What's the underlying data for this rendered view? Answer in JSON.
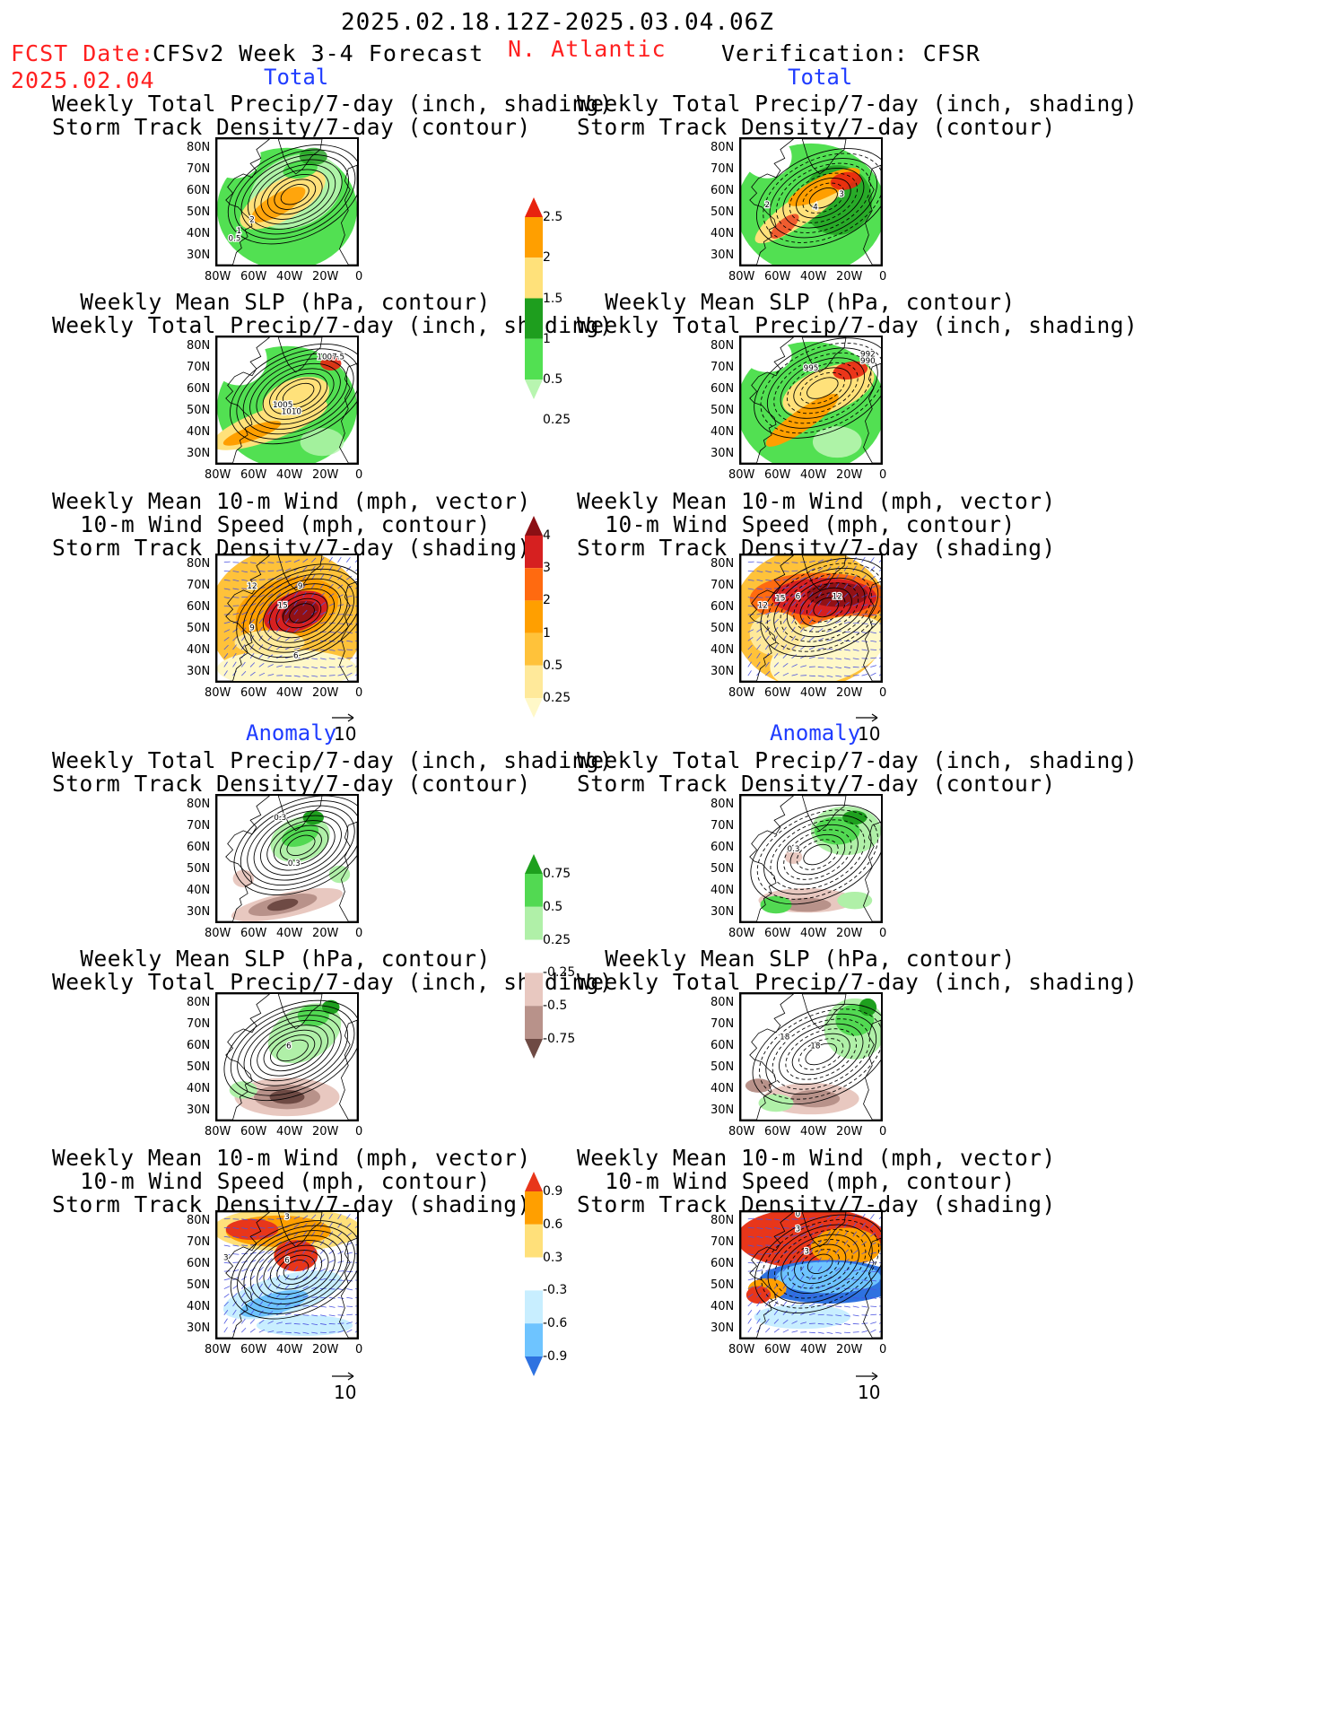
{
  "header": {
    "period": "2025.02.18.12Z-2025.03.04.06Z",
    "fcst_label": "FCST Date:",
    "fcst_date": "2025.02.04",
    "model": "CFSv2 Week 3-4 Forecast",
    "region": "N. Atlantic",
    "verification": "Verification: CFSR"
  },
  "sections": {
    "total": "Total",
    "anomaly": "Anomaly"
  },
  "titles": {
    "precip_track": [
      "Weekly Total Precip/7-day (inch, shading)",
      "Storm Track Density/7-day (contour)"
    ],
    "slp_precip": [
      "Weekly Mean SLP (hPa, contour)",
      "Weekly Total Precip/7-day (inch, shading)"
    ],
    "wind": [
      "Weekly Mean 10-m Wind (mph, vector)",
      "10-m Wind Speed (mph, contour)",
      "Storm Track Density/7-day (shading)"
    ]
  },
  "axes": {
    "lat": [
      "80N",
      "70N",
      "60N",
      "50N",
      "40N",
      "30N"
    ],
    "lon": [
      "80W",
      "60W",
      "40W",
      "20W",
      "0"
    ]
  },
  "ref_vector": "10",
  "colorbars": {
    "precip_total": {
      "labels": [
        "2.5",
        "2",
        "1.5",
        "1",
        "0.5",
        "0.25"
      ],
      "colors": [
        "#e8230f",
        "#ff9f00",
        "#ffe17a",
        "#1e9e1e",
        "#52e052",
        "#b8f5b0"
      ]
    },
    "track_total": {
      "labels": [
        "4",
        "3",
        "2",
        "1",
        "0.5",
        "0.25"
      ],
      "colors": [
        "#8b0f14",
        "#d62020",
        "#ff6a10",
        "#ff9f00",
        "#ffc23a",
        "#ffe99a",
        "#fff8c8"
      ]
    },
    "precip_anom": {
      "labels": [
        "0.75",
        "0.5",
        "0.25",
        "-0.25",
        "-0.5",
        "-0.75"
      ],
      "colors": [
        "#1ea01e",
        "#52d952",
        "#b0f0a8",
        "#ffffff",
        "#e8c8c0",
        "#b8928a",
        "#6e4a44"
      ]
    },
    "track_anom": {
      "labels": [
        "0.9",
        "0.6",
        "0.3",
        "-0.3",
        "-0.6",
        "-0.9"
      ],
      "colors": [
        "#e8361a",
        "#ff9f00",
        "#ffe07a",
        "#ffffff",
        "#c8eeff",
        "#6ec4ff",
        "#2e72e0"
      ]
    }
  },
  "contour_labels": {
    "p1": [
      "2",
      "1",
      "0.5"
    ],
    "p2": [
      "1007.5",
      "1005",
      "1010"
    ],
    "p3": [
      "12",
      "9",
      "15",
      "9",
      "6"
    ],
    "p4": [
      "0.3",
      "0.3"
    ],
    "p5": [
      "6"
    ],
    "p6": [
      "3",
      "3",
      "6"
    ],
    "q1": [
      "2",
      "3",
      "4"
    ],
    "q2": [
      "995",
      "992",
      "990"
    ],
    "q3": [
      "15",
      "6",
      "12",
      "12"
    ],
    "q4": [
      "0.3"
    ],
    "q5": [
      "18",
      "18"
    ],
    "q6": [
      "0",
      "3",
      "3"
    ]
  }
}
